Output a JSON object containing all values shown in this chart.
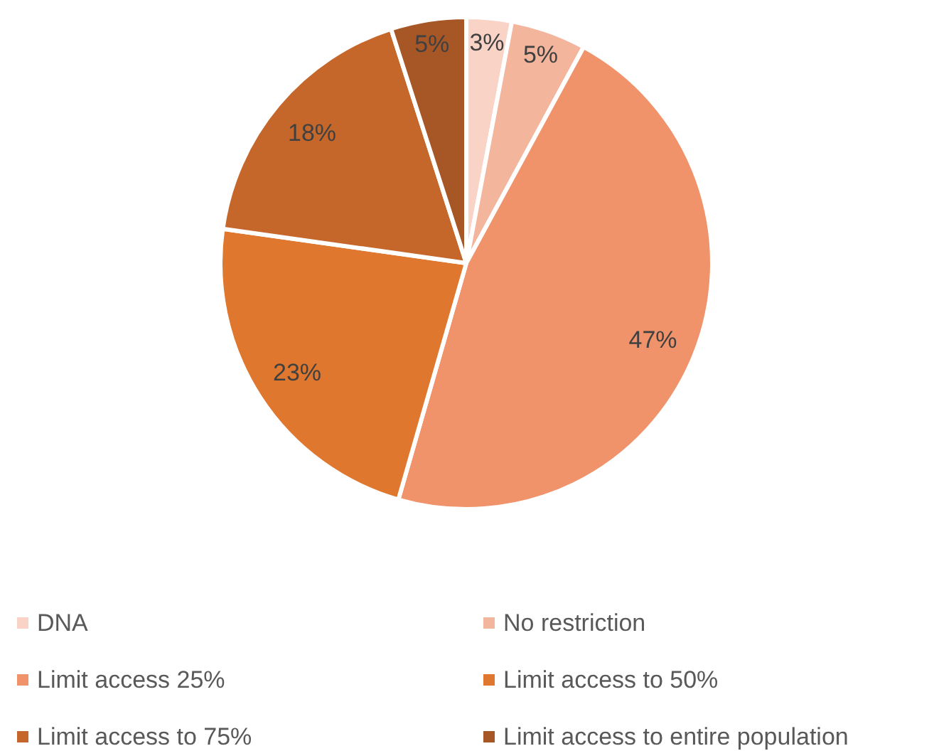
{
  "chart_data": {
    "type": "pie",
    "categories": [
      "DNA",
      "No restriction",
      "Limit access 25%",
      "Limit access to 50%",
      "Limit access to 75%",
      "Limit access to entire population"
    ],
    "values": [
      3,
      5,
      47,
      23,
      18,
      5
    ],
    "colors": [
      "#f9d3c6",
      "#f4b59d",
      "#f0936a",
      "#e0772e",
      "#c5672b",
      "#a75626"
    ],
    "value_labels": [
      "3%",
      "5%",
      "47%",
      "23%",
      "18%",
      "5%"
    ],
    "legend": "bottom"
  }
}
